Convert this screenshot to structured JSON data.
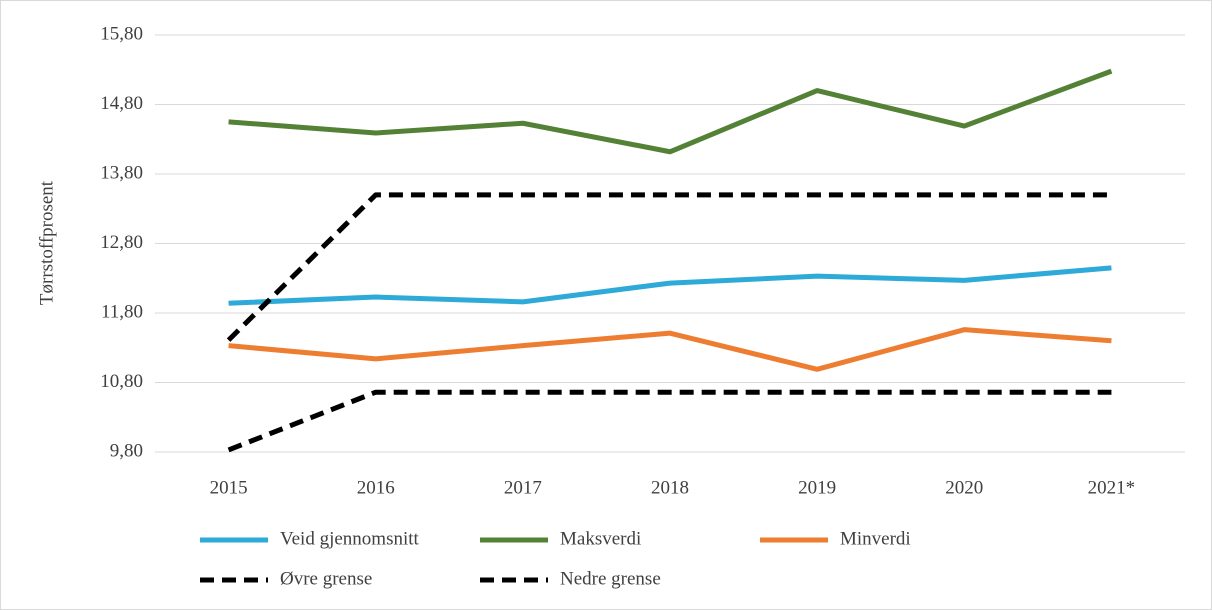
{
  "chart_data": {
    "type": "line",
    "y_label": "Tørrstoffprosent",
    "categories": [
      "2015",
      "2016",
      "2017",
      "2018",
      "2019",
      "2020",
      "2021*"
    ],
    "series": [
      {
        "name": "Veid gjennomsnitt",
        "color": "#2eaad8",
        "dashed": false,
        "values": [
          11.94,
          12.03,
          11.96,
          12.23,
          12.33,
          12.27,
          12.45
        ]
      },
      {
        "name": "Maksverdi",
        "color": "#538135",
        "dashed": false,
        "values": [
          14.55,
          14.39,
          14.53,
          14.12,
          15.0,
          14.49,
          15.28
        ]
      },
      {
        "name": "Minverdi",
        "color": "#ed7d31",
        "dashed": false,
        "values": [
          11.33,
          11.14,
          11.33,
          11.51,
          10.99,
          11.56,
          11.4
        ]
      },
      {
        "name": "Øvre grense",
        "color": "#000000",
        "dashed": true,
        "values": [
          11.41,
          13.5,
          13.5,
          13.5,
          13.5,
          13.5,
          13.5
        ]
      },
      {
        "name": "Nedre grense",
        "color": "#000000",
        "dashed": true,
        "values": [
          9.83,
          10.66,
          10.66,
          10.66,
          10.66,
          10.66,
          10.66
        ]
      }
    ],
    "ylim": [
      9.8,
      15.8
    ],
    "yticks": [
      {
        "value": 9.8,
        "label": "9,80"
      },
      {
        "value": 10.8,
        "label": "10,80"
      },
      {
        "value": 11.8,
        "label": "11,80"
      },
      {
        "value": 12.8,
        "label": "12,80"
      },
      {
        "value": 13.8,
        "label": "13,80"
      },
      {
        "value": 14.8,
        "label": "14,80"
      },
      {
        "value": 15.8,
        "label": "15,80"
      }
    ],
    "grid": true
  }
}
